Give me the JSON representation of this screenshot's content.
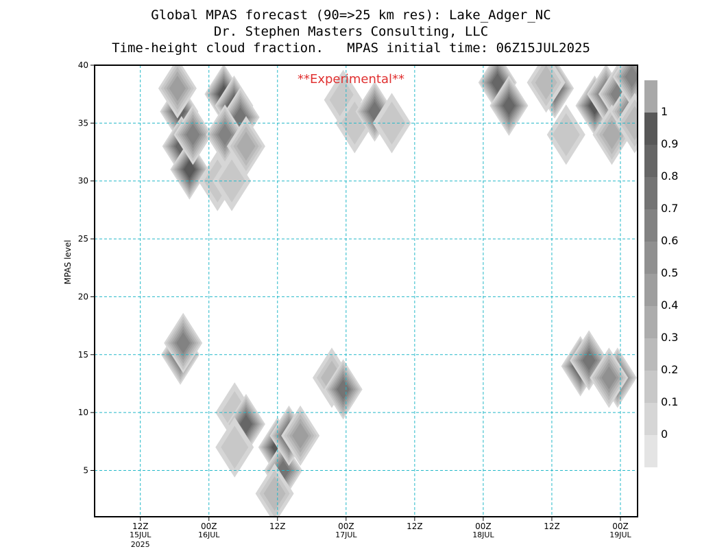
{
  "header": {
    "line1": "Global MPAS forecast (90=>25 km res): Lake_Adger_NC",
    "line2": "Dr. Stephen Masters Consulting, LLC",
    "line3": "Time-height cloud fraction.   MPAS initial time: 06Z15JUL2025"
  },
  "annotation": "**Experimental**",
  "chart_data": {
    "type": "heatmap",
    "title": "Time-height cloud fraction.   MPAS initial time: 06Z15JUL2025",
    "xlabel": "",
    "ylabel": "MPAS level",
    "xlim_hours_from_init": [
      -2,
      93
    ],
    "ylim": [
      1,
      40
    ],
    "y_ticks": [
      5,
      10,
      15,
      20,
      25,
      30,
      35,
      40
    ],
    "x_ticks": [
      {
        "hour": 6,
        "label": "12Z",
        "date": "15JUL",
        "year": "2025"
      },
      {
        "hour": 18,
        "label": "00Z",
        "date": "16JUL",
        "year": ""
      },
      {
        "hour": 30,
        "label": "12Z",
        "date": "",
        "year": ""
      },
      {
        "hour": 42,
        "label": "00Z",
        "date": "17JUL",
        "year": ""
      },
      {
        "hour": 54,
        "label": "12Z",
        "date": "",
        "year": ""
      },
      {
        "hour": 66,
        "label": "00Z",
        "date": "18JUL",
        "year": ""
      },
      {
        "hour": 78,
        "label": "12Z",
        "date": "",
        "year": ""
      },
      {
        "hour": 90,
        "label": "00Z",
        "date": "19JUL",
        "year": ""
      }
    ],
    "grid": true,
    "colorbar": {
      "labels": [
        "0",
        "0.1",
        "0.2",
        "0.3",
        "0.4",
        "0.5",
        "0.6",
        "0.7",
        "0.8",
        "0.9",
        "1"
      ],
      "colors": [
        "#e4e4e4",
        "#d6d6d6",
        "#c8c8c8",
        "#bababa",
        "#acacac",
        "#9e9e9e",
        "#909090",
        "#828282",
        "#747474",
        "#666666",
        "#585858",
        "#a8a8a8"
      ]
    },
    "cloud_points": [
      {
        "hour": 12.8,
        "level": 36,
        "value": 0.9
      },
      {
        "hour": 13.2,
        "level": 33,
        "value": 0.9
      },
      {
        "hour": 14.6,
        "level": 31,
        "value": 0.95
      },
      {
        "hour": 15.2,
        "level": 34,
        "value": 0.7
      },
      {
        "hour": 12.5,
        "level": 38,
        "value": 0.5
      },
      {
        "hour": 20.6,
        "level": 37.5,
        "value": 1.0
      },
      {
        "hour": 22.4,
        "level": 36.5,
        "value": 0.95
      },
      {
        "hour": 23.5,
        "level": 35.5,
        "value": 0.8
      },
      {
        "hour": 20.8,
        "level": 34,
        "value": 0.7
      },
      {
        "hour": 24.5,
        "level": 33,
        "value": 0.4
      },
      {
        "hour": 19.5,
        "level": 30,
        "value": 0.2
      },
      {
        "hour": 22,
        "level": 30,
        "value": 0.2
      },
      {
        "hour": 41.5,
        "level": 37,
        "value": 0.2
      },
      {
        "hour": 43.5,
        "level": 35,
        "value": 0.2
      },
      {
        "hour": 47,
        "level": 36,
        "value": 0.75
      },
      {
        "hour": 50,
        "level": 35,
        "value": 0.2
      },
      {
        "hour": 68.5,
        "level": 38.5,
        "value": 0.9
      },
      {
        "hour": 70.5,
        "level": 36.5,
        "value": 0.85
      },
      {
        "hour": 78.5,
        "level": 38,
        "value": 0.9
      },
      {
        "hour": 77,
        "level": 38.5,
        "value": 0.25
      },
      {
        "hour": 80.5,
        "level": 34,
        "value": 0.2
      },
      {
        "hour": 85.5,
        "level": 36.5,
        "value": 0.95
      },
      {
        "hour": 87.5,
        "level": 37.5,
        "value": 0.8
      },
      {
        "hour": 89.5,
        "level": 37.5,
        "value": 0.7
      },
      {
        "hour": 88.5,
        "level": 34,
        "value": 0.35
      },
      {
        "hour": 91.5,
        "level": 36,
        "value": 0.6
      },
      {
        "hour": 92,
        "level": 39,
        "value": 0.7
      },
      {
        "hour": 92.5,
        "level": 35,
        "value": 0.25
      },
      {
        "hour": 13,
        "level": 15,
        "value": 0.9
      },
      {
        "hour": 13.5,
        "level": 16,
        "value": 0.65
      },
      {
        "hour": 22.5,
        "level": 10,
        "value": 0.2
      },
      {
        "hour": 24.5,
        "level": 9,
        "value": 0.9
      },
      {
        "hour": 22.5,
        "level": 7,
        "value": 0.2
      },
      {
        "hour": 30,
        "level": 7,
        "value": 1.0
      },
      {
        "hour": 31,
        "level": 5,
        "value": 0.8
      },
      {
        "hour": 32,
        "level": 8,
        "value": 0.9
      },
      {
        "hour": 29.5,
        "level": 3,
        "value": 0.3
      },
      {
        "hour": 34,
        "level": 8,
        "value": 0.5
      },
      {
        "hour": 39.5,
        "level": 13,
        "value": 0.25
      },
      {
        "hour": 41.5,
        "level": 12,
        "value": 0.75
      },
      {
        "hour": 83,
        "level": 14,
        "value": 1.0
      },
      {
        "hour": 84.5,
        "level": 14.5,
        "value": 0.8
      },
      {
        "hour": 89.5,
        "level": 13,
        "value": 0.9
      },
      {
        "hour": 88,
        "level": 13,
        "value": 0.6
      }
    ]
  }
}
